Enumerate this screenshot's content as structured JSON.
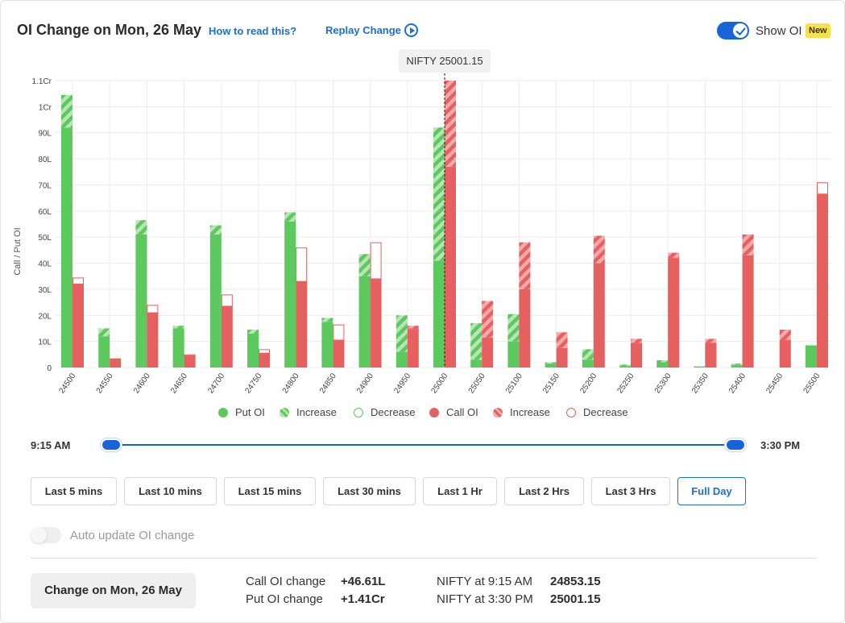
{
  "header": {
    "title": "OI Change on Mon, 26 May",
    "how_to_read": "How to read this?",
    "replay_change": "Replay Change",
    "show_oi_label": "Show OI",
    "show_oi_on": true,
    "new_badge": "New"
  },
  "spot_tooltip": "NIFTY 25001.15",
  "chart_data": {
    "type": "bar",
    "ylabel": "Call / Put OI",
    "y_unit": "Lakh",
    "ylim": [
      0,
      110
    ],
    "y_ticks": [
      {
        "value": 0,
        "label": "0"
      },
      {
        "value": 10,
        "label": "10L"
      },
      {
        "value": 20,
        "label": "20L"
      },
      {
        "value": 30,
        "label": "30L"
      },
      {
        "value": 40,
        "label": "40L"
      },
      {
        "value": 50,
        "label": "50L"
      },
      {
        "value": 60,
        "label": "60L"
      },
      {
        "value": 70,
        "label": "70L"
      },
      {
        "value": 80,
        "label": "80L"
      },
      {
        "value": 90,
        "label": "90L"
      },
      {
        "value": 100,
        "label": "1Cr"
      },
      {
        "value": 110,
        "label": "1.1Cr"
      }
    ],
    "grid": true,
    "spot_strike": "25000",
    "categories": [
      "24500",
      "24550",
      "24600",
      "24650",
      "24700",
      "24750",
      "24800",
      "24850",
      "24900",
      "24950",
      "25000",
      "25050",
      "25100",
      "25150",
      "25200",
      "25250",
      "25300",
      "25350",
      "25400",
      "25450",
      "25500"
    ],
    "series": [
      {
        "name": "Put OI",
        "base": [
          92,
          12,
          51,
          15,
          51,
          13,
          56,
          17.5,
          35,
          6,
          41,
          3,
          10,
          1.5,
          3,
          0.6,
          2,
          0.4,
          1,
          0,
          8.5
        ],
        "increase": [
          12.5,
          3,
          5.5,
          1,
          3.5,
          1.5,
          3.5,
          1.5,
          8.5,
          14,
          51,
          14,
          10.5,
          0.5,
          4,
          0.5,
          0.8,
          0.1,
          0.5,
          0,
          0
        ],
        "decrease": [
          0,
          0,
          0,
          0,
          0,
          0,
          0,
          0,
          0,
          0,
          0,
          0,
          0,
          0,
          0,
          0,
          0,
          0,
          0,
          0,
          0
        ]
      },
      {
        "name": "Call OI",
        "base": [
          32,
          3.5,
          21,
          4.5,
          23.5,
          5.5,
          33,
          10.5,
          34,
          14.5,
          77,
          11.5,
          30,
          7.5,
          40,
          9.5,
          42,
          9.5,
          43,
          10.5,
          66.5
        ],
        "increase": [
          0,
          0,
          0,
          0.5,
          0,
          0,
          0,
          0,
          0,
          1.5,
          33,
          14,
          18,
          6,
          10.5,
          1.5,
          2,
          1.5,
          8,
          4,
          0
        ],
        "decrease": [
          2.5,
          0,
          3,
          0.5,
          4.5,
          1.5,
          13,
          6,
          14,
          0.5,
          0,
          0,
          0,
          0,
          0,
          0,
          0,
          0,
          0,
          0,
          4.5
        ]
      }
    ],
    "legend": [
      {
        "label": "Put OI",
        "style": "solid-green"
      },
      {
        "label": "Increase",
        "style": "hatched-green"
      },
      {
        "label": "Decrease",
        "style": "outline-green"
      },
      {
        "label": "Call OI",
        "style": "solid-red"
      },
      {
        "label": "Increase",
        "style": "hatched-red"
      },
      {
        "label": "Decrease",
        "style": "outline-red"
      }
    ],
    "legend_position": "bottom-center",
    "colors": {
      "put": "#5cc95f",
      "put_light": "#b6e6b5",
      "call": "#e76060",
      "call_light": "#f3aaaa",
      "grid": "#ececec"
    }
  },
  "time_range": {
    "start": "9:15 AM",
    "end": "3:30 PM"
  },
  "range_buttons": [
    {
      "label": "Last 5 mins",
      "active": false
    },
    {
      "label": "Last 10 mins",
      "active": false
    },
    {
      "label": "Last 15 mins",
      "active": false
    },
    {
      "label": "Last 30 mins",
      "active": false
    },
    {
      "label": "Last 1 Hr",
      "active": false
    },
    {
      "label": "Last 2 Hrs",
      "active": false
    },
    {
      "label": "Last 3 Hrs",
      "active": false
    },
    {
      "label": "Full Day",
      "active": true
    }
  ],
  "auto_update": {
    "label": "Auto update OI change",
    "on": false
  },
  "summary": {
    "change_button": "Change on Mon, 26 May",
    "call_oi_label": "Call OI change",
    "call_oi_value": "+46.61L",
    "put_oi_label": "Put OI change",
    "put_oi_value": "+1.41Cr",
    "nifty_start_label": "NIFTY at 9:15 AM",
    "nifty_start_value": "24853.15",
    "nifty_end_label": "NIFTY at 3:30 PM",
    "nifty_end_value": "25001.15"
  }
}
